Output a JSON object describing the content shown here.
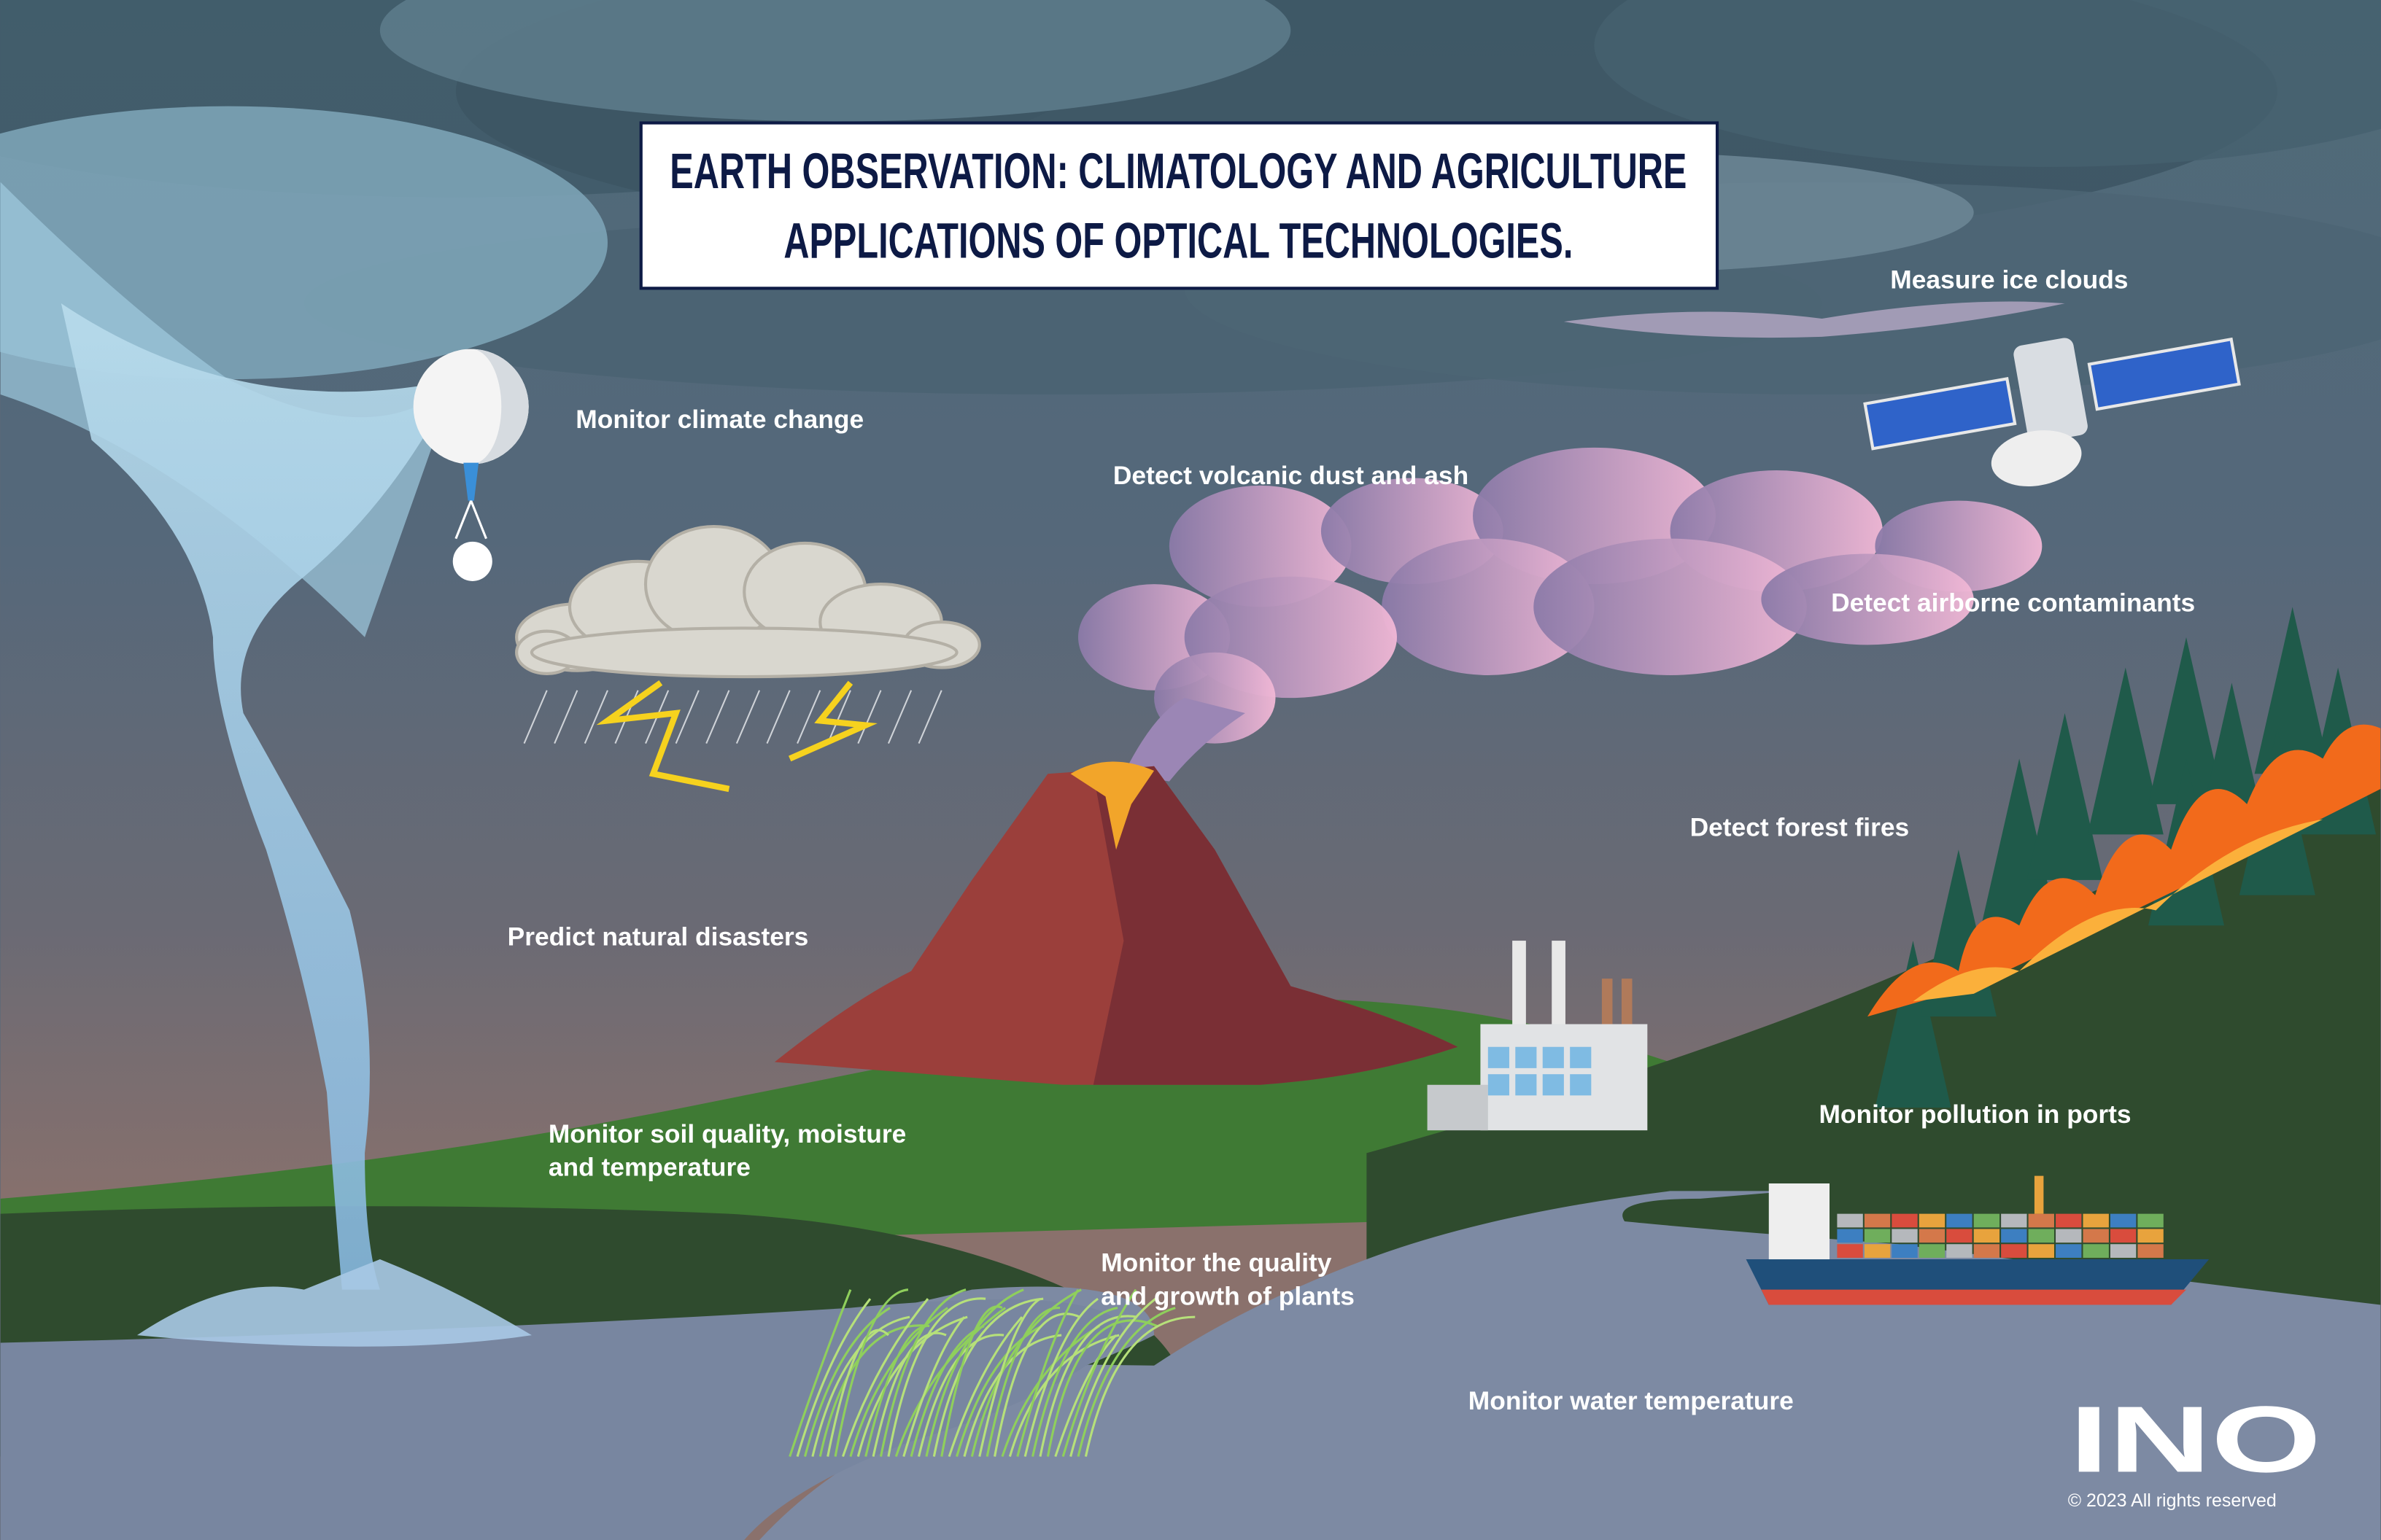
{
  "header": {
    "title_lines": [
      "EARTH OBSERVATION: CLIMATOLOGY AND AGRICULTURE",
      "APPLICATIONS OF OPTICAL TECHNOLOGIES."
    ]
  },
  "labels": [
    {
      "lines": [
        "Measure ice clouds"
      ]
    },
    {
      "lines": [
        "Monitor climate change"
      ]
    },
    {
      "lines": [
        "Detect volcanic dust and ash"
      ]
    },
    {
      "lines": [
        "Detect airborne contaminants"
      ]
    },
    {
      "lines": [
        "Detect forest fires"
      ]
    },
    {
      "lines": [
        "Predict natural disasters"
      ]
    },
    {
      "lines": [
        "Monitor soil quality, moisture",
        "and temperature"
      ]
    },
    {
      "lines": [
        "Monitor pollution in ports"
      ]
    },
    {
      "lines": [
        "Monitor the quality",
        "and growth of plants"
      ]
    },
    {
      "lines": [
        "Monitor water temperature"
      ]
    }
  ],
  "logo": {
    "text": "INO",
    "copyright": "© 2023 All rights reserved"
  }
}
